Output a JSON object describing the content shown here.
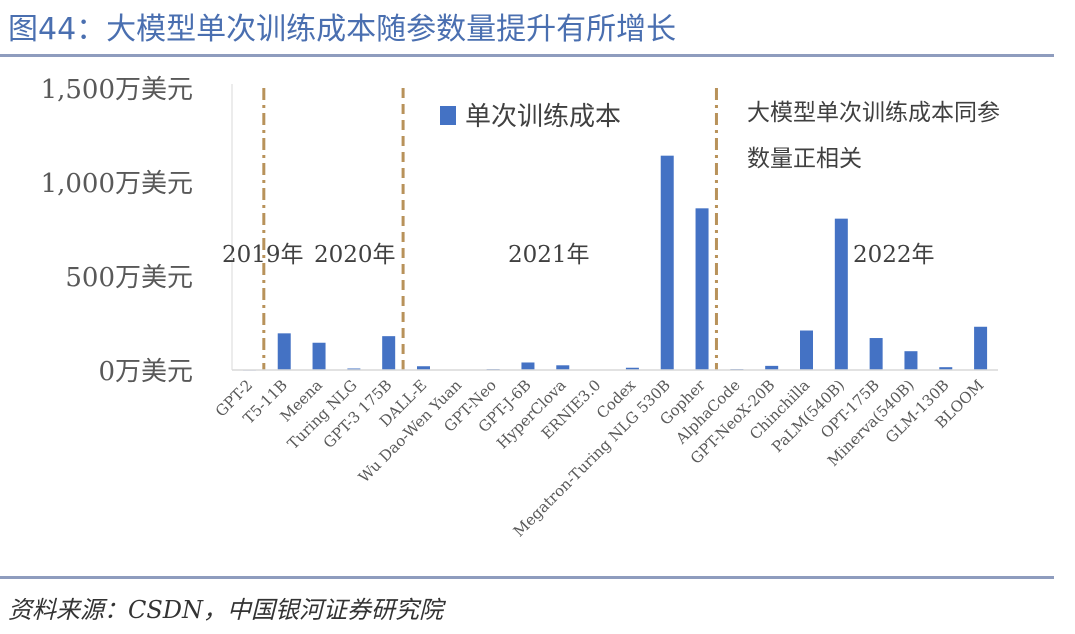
{
  "figure": {
    "title": "图44：大模型单次训练成本随参数量提升有所增长",
    "source": "资料来源：CSDN，中国银河证券研究院"
  },
  "chart_data": {
    "type": "bar",
    "title": "",
    "xlabel": "",
    "ylabel": "",
    "ylim": [
      0,
      1500
    ],
    "y_ticks": [
      0,
      500,
      1000,
      1500
    ],
    "y_tick_labels": [
      "0万美元",
      "500万美元",
      "1,000万美元",
      "1,500万美元"
    ],
    "grid": false,
    "legend": {
      "position": "top-center",
      "label": "单次训练成本"
    },
    "categories": [
      "GPT-2",
      "T5-11B",
      "Meena",
      "Turing NLG",
      "GPT-3 175B",
      "DALL-E",
      "Wu Dao-Wen Yuan",
      "GPT-Neo",
      "GPT-J-6B",
      "HyperClova",
      "ERNIE3.0",
      "Codex",
      "Megatron-Turing NLG 530B",
      "Gopher",
      "AlphaCode",
      "GPT-NeoX-20B",
      "Chinchilla",
      "PaLM(540B)",
      "OPT-175B",
      "Minerva(540B)",
      "GLM-130B",
      "BLOOM"
    ],
    "series": [
      {
        "name": "单次训练成本",
        "color": "#4472c4",
        "values": [
          1,
          195,
          145,
          8,
          180,
          20,
          2,
          5,
          40,
          25,
          2,
          12,
          1140,
          860,
          5,
          22,
          210,
          805,
          170,
          100,
          15,
          230
        ]
      }
    ],
    "dividers": [
      {
        "after_category": "GPT-2",
        "style": "dash-dot",
        "color": "#b8925a"
      },
      {
        "after_category": "GPT-3 175B",
        "style": "dashed",
        "color": "#b8925a"
      },
      {
        "after_category": "Gopher",
        "style": "dash-dot",
        "color": "#b8925a"
      }
    ],
    "annotations": [
      {
        "text": "2019年"
      },
      {
        "text": "2020年"
      },
      {
        "text": "2021年"
      },
      {
        "text": "2022年"
      },
      {
        "text": "大模型单次训练成本同参"
      },
      {
        "text": "数量正相关"
      }
    ]
  }
}
